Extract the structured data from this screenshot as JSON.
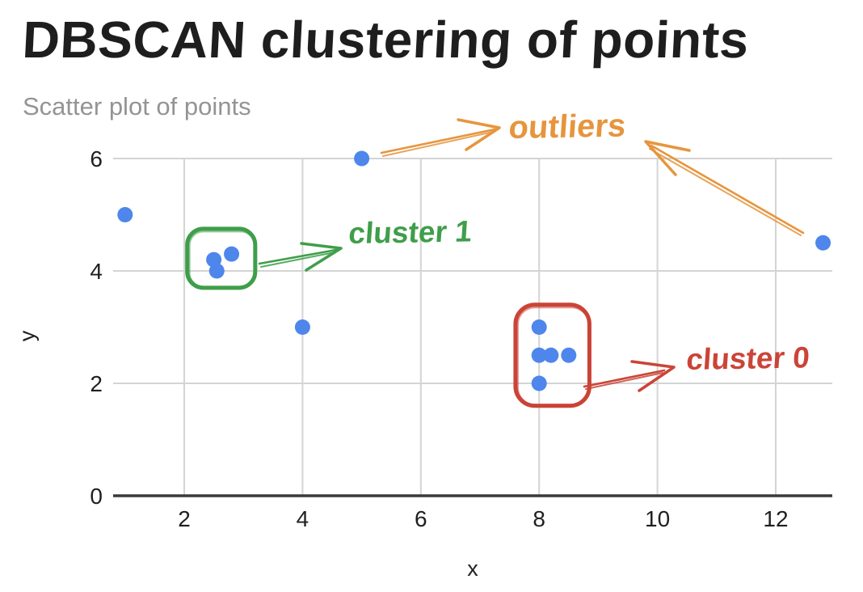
{
  "colors": {
    "point": "#4e86ec",
    "cluster0": "#cb4437",
    "cluster1": "#3f9e4a",
    "outliers": "#e6953d",
    "grid": "#d4d4d4",
    "axis": "#3a3a3a",
    "tick_text": "#1f1f1f",
    "subtitle_text": "#949494",
    "title_text": "#1e1e1e"
  },
  "chart_data": {
    "type": "scatter",
    "title": "DBSCAN clustering of points",
    "subtitle": "Scatter plot of points",
    "xlabel": "x",
    "ylabel": "y",
    "xlim": [
      0.8,
      13.2
    ],
    "ylim": [
      0,
      6
    ],
    "x_ticks": [
      2,
      4,
      6,
      8,
      10,
      12
    ],
    "y_ticks": [
      0,
      2,
      4,
      6
    ],
    "grid": true,
    "point_color": "#4e86ec",
    "points": [
      [
        1,
        5
      ],
      [
        2.5,
        4.2
      ],
      [
        2.55,
        4.0
      ],
      [
        2.8,
        4.3
      ],
      [
        4,
        3
      ],
      [
        5,
        6
      ],
      [
        8,
        3
      ],
      [
        8,
        2.5
      ],
      [
        8.2,
        2.5
      ],
      [
        8.5,
        2.5
      ],
      [
        8,
        2
      ],
      [
        12.8,
        4.5
      ]
    ],
    "annotations": {
      "cluster0": {
        "label": "cluster 0",
        "color": "#cb4437",
        "circled_points": [
          [
            8,
            3
          ],
          [
            8,
            2.5
          ],
          [
            8.2,
            2.5
          ],
          [
            8.5,
            2.5
          ],
          [
            8,
            2
          ]
        ],
        "box": {
          "x1": 7.6,
          "y1": 1.6,
          "x2": 8.85,
          "y2": 3.4
        }
      },
      "cluster1": {
        "label": "cluster 1",
        "color": "#3f9e4a",
        "circled_points": [
          [
            2.5,
            4.2
          ],
          [
            2.55,
            4.0
          ],
          [
            2.8,
            4.3
          ]
        ],
        "box": {
          "x1": 2.05,
          "y1": 3.7,
          "x2": 3.2,
          "y2": 4.75
        }
      },
      "outliers": {
        "label": "outliers",
        "color": "#e6953d",
        "arrow_targets": [
          [
            5,
            6
          ],
          [
            12.8,
            4.5
          ]
        ]
      }
    }
  }
}
